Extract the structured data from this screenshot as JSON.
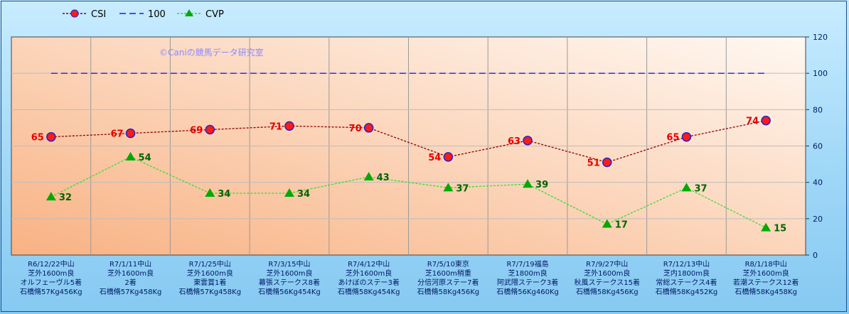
{
  "chart_data": {
    "type": "line",
    "title": "",
    "watermark": "©Caniの競馬データ研究室",
    "categories": [
      [
        "R6/12/22中山",
        "芝外1600m良",
        "オルフェーヴル5着",
        "石橋脩57Kg456Kg"
      ],
      [
        "R7/1/11中山",
        "芝外1600m良",
        "2着",
        "石橋脩57Kg458Kg"
      ],
      [
        "R7/1/25中山",
        "芝外1600m良",
        "東雲賞1着",
        "石橋脩57Kg458Kg"
      ],
      [
        "R7/3/15中山",
        "芝外1600m良",
        "幕張ステークス8着",
        "石橋脩56Kg454Kg"
      ],
      [
        "R7/4/12中山",
        "芝外1600m良",
        "あけぼのステー3着",
        "石橋脩58Kg454Kg"
      ],
      [
        "R7/5/10東京",
        "芝1600m稍重",
        "分倍河原ステー7着",
        "石橋脩58Kg456Kg"
      ],
      [
        "R7/7/19福島",
        "芝1800m良",
        "阿武隈ステーク3着",
        "石橋脩56Kg460Kg"
      ],
      [
        "R7/9/27中山",
        "芝外1600m良",
        "秋風ステークス15着",
        "石橋脩58Kg456Kg"
      ],
      [
        "R7/12/13中山",
        "芝内1800m良",
        "常総ステークス4着",
        "石橋脩58Kg452Kg"
      ],
      [
        "R8/1/18中山",
        "芝外1600m良",
        "若潮ステークス12着",
        "石橋脩58Kg458Kg"
      ]
    ],
    "series": [
      {
        "name": "CSI",
        "values": [
          65,
          67,
          69,
          71,
          70,
          54,
          63,
          51,
          65,
          74
        ],
        "color": "#8b0000",
        "marker": "circle",
        "marker_color": "#ff1a1a",
        "label_color": "#e60000"
      },
      {
        "name": "100",
        "values": [
          100,
          100,
          100,
          100,
          100,
          100,
          100,
          100,
          100,
          100
        ],
        "color": "#1a1aff",
        "marker": "none"
      },
      {
        "name": "CVP",
        "values": [
          32,
          54,
          34,
          34,
          43,
          37,
          39,
          17,
          37,
          15
        ],
        "color": "#33dd33",
        "marker": "triangle",
        "marker_color": "#00aa00",
        "label_color": "#006400"
      }
    ],
    "y_ticks": [
      0,
      20,
      40,
      60,
      80,
      100,
      120
    ],
    "ylim": [
      0,
      120
    ],
    "xlabel": "",
    "ylabel": "",
    "grid": true,
    "legend": "top-left",
    "plot_background": [
      "#fff6ee",
      "#f9b88a"
    ]
  }
}
